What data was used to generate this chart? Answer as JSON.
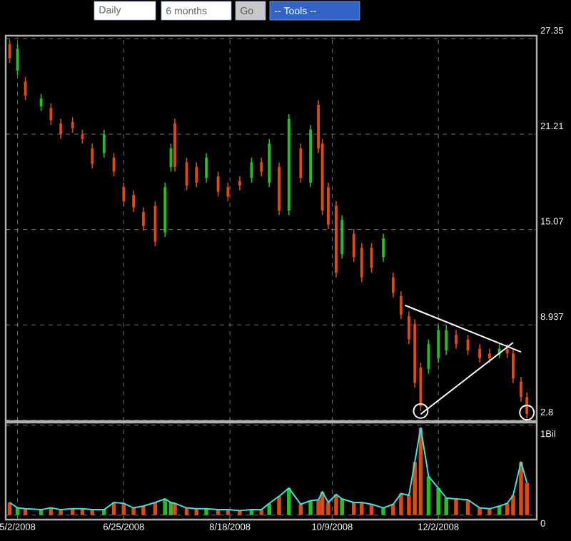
{
  "chart_data": [
    {
      "type": "candlestick",
      "annotations": [
        "Daily",
        "6 months",
        "Go",
        "-- Tools --"
      ],
      "x": [
        "2008-04-28",
        "2008-05-02",
        "2008-05-06",
        "2008-05-14",
        "2008-05-19",
        "2008-05-24",
        "2008-05-30",
        "2008-06-04",
        "2008-06-09",
        "2008-06-15",
        "2008-06-20",
        "2008-06-25",
        "2008-06-30",
        "2008-07-05",
        "2008-07-11",
        "2008-07-16",
        "2008-07-19",
        "2008-07-21",
        "2008-07-27",
        "2008-08-01",
        "2008-08-06",
        "2008-08-12",
        "2008-08-17",
        "2008-08-23",
        "2008-08-29",
        "2008-09-03",
        "2008-09-07",
        "2008-09-12",
        "2008-09-17",
        "2008-09-23",
        "2008-09-28",
        "2008-10-02",
        "2008-10-04",
        "2008-10-07",
        "2008-10-11",
        "2008-10-14",
        "2008-10-20",
        "2008-10-24",
        "2008-10-29",
        "2008-11-04",
        "2008-11-09",
        "2008-11-13",
        "2008-11-17",
        "2008-11-20",
        "2008-11-23",
        "2008-11-27",
        "2008-12-02",
        "2008-12-06",
        "2008-12-11",
        "2008-12-17",
        "2008-12-23",
        "2008-12-28",
        "2009-01-02",
        "2009-01-06",
        "2009-01-09",
        "2009-01-13",
        "2009-01-16"
      ],
      "ohlc": [
        [
          27.0,
          27.3,
          25.8,
          26.1
        ],
        [
          25.3,
          27.0,
          25.0,
          26.7
        ],
        [
          24.6,
          24.9,
          23.4,
          23.7
        ],
        [
          23.0,
          23.8,
          22.7,
          23.5
        ],
        [
          22.9,
          23.2,
          21.8,
          22.1
        ],
        [
          21.9,
          22.2,
          20.9,
          21.2
        ],
        [
          22.0,
          22.3,
          21.3,
          21.6
        ],
        [
          21.2,
          21.5,
          20.6,
          20.9
        ],
        [
          20.3,
          20.6,
          19.0,
          19.3
        ],
        [
          20.0,
          21.5,
          19.7,
          21.2
        ],
        [
          19.7,
          20.0,
          18.5,
          18.8
        ],
        [
          17.8,
          18.1,
          16.6,
          16.9
        ],
        [
          17.3,
          17.6,
          16.2,
          16.5
        ],
        [
          16.2,
          16.5,
          15.0,
          15.3
        ],
        [
          16.6,
          16.9,
          14.0,
          14.3
        ],
        [
          14.9,
          18.1,
          14.6,
          17.8
        ],
        [
          19.1,
          20.6,
          18.8,
          20.3
        ],
        [
          21.9,
          22.2,
          18.8,
          19.1
        ],
        [
          19.4,
          19.7,
          17.6,
          17.9
        ],
        [
          19.1,
          19.4,
          17.8,
          18.1
        ],
        [
          18.4,
          20.0,
          18.1,
          19.7
        ],
        [
          18.5,
          18.8,
          17.2,
          17.5
        ],
        [
          17.8,
          18.1,
          16.9,
          17.2
        ],
        [
          18.2,
          18.5,
          17.6,
          17.9
        ],
        [
          18.4,
          19.7,
          18.1,
          19.4
        ],
        [
          19.4,
          19.7,
          18.5,
          18.8
        ],
        [
          18.1,
          20.9,
          17.8,
          20.6
        ],
        [
          19.1,
          19.4,
          16.0,
          16.3
        ],
        [
          16.3,
          22.5,
          16.0,
          22.2
        ],
        [
          20.3,
          20.6,
          18.1,
          18.4
        ],
        [
          18.1,
          21.8,
          17.8,
          21.5
        ],
        [
          23.1,
          23.4,
          20.0,
          20.3
        ],
        [
          20.6,
          20.9,
          16.0,
          16.3
        ],
        [
          17.8,
          18.1,
          15.1,
          15.4
        ],
        [
          16.6,
          16.9,
          12.0,
          12.3
        ],
        [
          13.5,
          16.0,
          13.2,
          15.7
        ],
        [
          14.8,
          15.1,
          13.0,
          13.3
        ],
        [
          13.9,
          14.2,
          11.7,
          12.0
        ],
        [
          13.9,
          14.2,
          12.3,
          12.6
        ],
        [
          13.3,
          14.8,
          13.0,
          14.5
        ],
        [
          12.0,
          12.3,
          10.7,
          11.0
        ],
        [
          10.8,
          11.1,
          9.3,
          9.6
        ],
        [
          9.5,
          9.8,
          7.7,
          8.0
        ],
        [
          9.0,
          9.3,
          4.9,
          5.2
        ],
        [
          6.2,
          6.5,
          3.4,
          3.7
        ],
        [
          6.1,
          8.0,
          5.8,
          7.7
        ],
        [
          6.8,
          8.9,
          6.5,
          8.6
        ],
        [
          7.3,
          8.9,
          7.0,
          8.6
        ],
        [
          8.3,
          8.6,
          7.4,
          7.7
        ],
        [
          8.0,
          8.3,
          7.0,
          7.3
        ],
        [
          7.4,
          7.7,
          6.5,
          6.8
        ],
        [
          7.1,
          7.4,
          6.5,
          6.8
        ],
        [
          7.0,
          7.7,
          6.8,
          7.4
        ],
        [
          7.4,
          7.7,
          6.8,
          7.1
        ],
        [
          7.1,
          7.4,
          5.2,
          5.5
        ],
        [
          5.3,
          5.6,
          4.0,
          4.3
        ],
        [
          4.3,
          4.6,
          2.9,
          3.2
        ]
      ],
      "colors": [
        "#e04a10",
        "#22c022",
        "#e04a10",
        "#22c022",
        "#e04a10",
        "#e04a10",
        "#e04a10",
        "#e04a10",
        "#e04a10",
        "#22c022",
        "#e04a10",
        "#e04a10",
        "#e04a10",
        "#e04a10",
        "#e04a10",
        "#22c022",
        "#22c022",
        "#e04a10",
        "#e04a10",
        "#e04a10",
        "#22c022",
        "#e04a10",
        "#e04a10",
        "#e04a10",
        "#22c022",
        "#e04a10",
        "#22c022",
        "#e04a10",
        "#22c022",
        "#e04a10",
        "#22c022",
        "#e04a10",
        "#e04a10",
        "#e04a10",
        "#e04a10",
        "#22c022",
        "#e04a10",
        "#e04a10",
        "#e04a10",
        "#22c022",
        "#e04a10",
        "#e04a10",
        "#e04a10",
        "#e04a10",
        "#e04a10",
        "#22c022",
        "#22c022",
        "#22c022",
        "#e04a10",
        "#e04a10",
        "#e04a10",
        "#e04a10",
        "#22c022",
        "#e04a10",
        "#e04a10",
        "#e04a10",
        "#e04a10"
      ],
      "series": [
        {
          "type": "line",
          "color": "#ffffff",
          "x": [
            "2008-11-15",
            "2009-01-13"
          ],
          "values": [
            10.2,
            7.2
          ]
        },
        {
          "type": "line",
          "color": "#ffffff",
          "x": [
            "2008-11-23",
            "2009-01-09"
          ],
          "values": [
            3.2,
            7.8
          ]
        },
        {
          "type": "scatter",
          "marker": "circle",
          "color": "#ffffff",
          "x": [
            "2008-11-23",
            "2009-01-16"
          ],
          "values": [
            3.4,
            3.3
          ]
        }
      ],
      "xlim": [
        "2008-04-26",
        "2009-01-21"
      ],
      "xticks": [
        {
          "value": "2008-05-02",
          "label": null
        },
        {
          "value": "2008-06-25",
          "label": null
        },
        {
          "value": "2008-08-18",
          "label": null
        },
        {
          "value": "2008-10-09",
          "label": null
        },
        {
          "value": "2008-12-02",
          "label": null
        }
      ],
      "ylim": [
        2.75,
        27.55
      ],
      "yticks": [
        27.35,
        {
          "value": 21.2125,
          "label": "21.21"
        },
        {
          "value": 15.075,
          "label": "15.07"
        },
        {
          "value": 8.9375,
          "label": "8.937"
        },
        2.8
      ],
      "grid": true,
      "tick_labels": "y"
    },
    {
      "type": "bar",
      "x": [
        "2008-04-28",
        "2008-05-02",
        "2008-05-06",
        "2008-05-14",
        "2008-05-19",
        "2008-05-24",
        "2008-05-30",
        "2008-06-04",
        "2008-06-09",
        "2008-06-15",
        "2008-06-20",
        "2008-06-25",
        "2008-06-30",
        "2008-07-05",
        "2008-07-11",
        "2008-07-16",
        "2008-07-19",
        "2008-07-21",
        "2008-07-27",
        "2008-08-01",
        "2008-08-06",
        "2008-08-12",
        "2008-08-17",
        "2008-08-23",
        "2008-08-29",
        "2008-09-03",
        "2008-09-07",
        "2008-09-12",
        "2008-09-17",
        "2008-09-23",
        "2008-09-28",
        "2008-10-02",
        "2008-10-04",
        "2008-10-07",
        "2008-10-11",
        "2008-10-14",
        "2008-10-20",
        "2008-10-24",
        "2008-10-29",
        "2008-11-04",
        "2008-11-09",
        "2008-11-13",
        "2008-11-17",
        "2008-11-20",
        "2008-11-23",
        "2008-11-27",
        "2008-12-02",
        "2008-12-06",
        "2008-12-11",
        "2008-12-17",
        "2008-12-23",
        "2008-12-28",
        "2009-01-02",
        "2009-01-06",
        "2009-01-09",
        "2009-01-13",
        "2009-01-16"
      ],
      "series": [
        {
          "values": [
            0.14,
            0.08,
            0.07,
            0.06,
            0.08,
            0.06,
            0.07,
            0.07,
            0.06,
            0.06,
            0.14,
            0.13,
            0.08,
            0.1,
            0.14,
            0.18,
            0.14,
            0.13,
            0.08,
            0.07,
            0.07,
            0.06,
            0.06,
            0.05,
            0.06,
            0.06,
            0.13,
            0.21,
            0.3,
            0.12,
            0.16,
            0.17,
            0.26,
            0.14,
            0.23,
            0.18,
            0.14,
            0.14,
            0.12,
            0.08,
            0.12,
            0.24,
            0.22,
            0.59,
            0.97,
            0.43,
            0.3,
            0.19,
            0.18,
            0.17,
            0.08,
            0.07,
            0.1,
            0.13,
            0.22,
            0.59,
            0.36
          ],
          "colors": [
            "#e04a10",
            "#22c022",
            "#e04a10",
            "#22c022",
            "#e04a10",
            "#e04a10",
            "#e04a10",
            "#e04a10",
            "#e04a10",
            "#22c022",
            "#e04a10",
            "#e04a10",
            "#e04a10",
            "#e04a10",
            "#e04a10",
            "#22c022",
            "#22c022",
            "#e04a10",
            "#e04a10",
            "#e04a10",
            "#22c022",
            "#e04a10",
            "#e04a10",
            "#e04a10",
            "#22c022",
            "#e04a10",
            "#22c022",
            "#e04a10",
            "#22c022",
            "#e04a10",
            "#22c022",
            "#e04a10",
            "#e04a10",
            "#e04a10",
            "#e04a10",
            "#22c022",
            "#e04a10",
            "#e04a10",
            "#e04a10",
            "#22c022",
            "#e04a10",
            "#e04a10",
            "#e04a10",
            "#e04a10",
            "#e04a10",
            "#22c022",
            "#22c022",
            "#22c022",
            "#e04a10",
            "#e04a10",
            "#e04a10",
            "#e04a10",
            "#22c022",
            "#e04a10",
            "#e04a10",
            "#e04a10",
            "#e04a10"
          ]
        },
        {
          "type": "line",
          "color": "#40e0e0",
          "values": [
            0.14,
            0.08,
            0.07,
            0.06,
            0.08,
            0.06,
            0.07,
            0.07,
            0.06,
            0.06,
            0.14,
            0.13,
            0.08,
            0.1,
            0.14,
            0.18,
            0.14,
            0.13,
            0.08,
            0.07,
            0.07,
            0.06,
            0.06,
            0.05,
            0.06,
            0.06,
            0.13,
            0.21,
            0.3,
            0.12,
            0.16,
            0.17,
            0.26,
            0.14,
            0.23,
            0.18,
            0.14,
            0.14,
            0.12,
            0.08,
            0.12,
            0.24,
            0.22,
            0.59,
            0.97,
            0.43,
            0.3,
            0.19,
            0.18,
            0.17,
            0.08,
            0.07,
            0.1,
            0.13,
            0.22,
            0.59,
            0.36
          ]
        }
      ],
      "xlim": [
        "2008-04-26",
        "2009-01-21"
      ],
      "xticks": [
        {
          "value": "2008-05-02",
          "label": "5/2/2008"
        },
        {
          "value": "2008-06-25",
          "label": "6/25/2008"
        },
        {
          "value": "2008-08-18",
          "label": "8/18/2008"
        },
        {
          "value": "2008-10-09",
          "label": "10/9/2008"
        },
        {
          "value": "2008-12-02",
          "label": "12/2/2008"
        }
      ],
      "ylim": [
        -0.05,
        1.03
      ],
      "yticks": [
        {
          "value": 1,
          "label": "1Bil"
        },
        0
      ],
      "grid": true
    }
  ]
}
